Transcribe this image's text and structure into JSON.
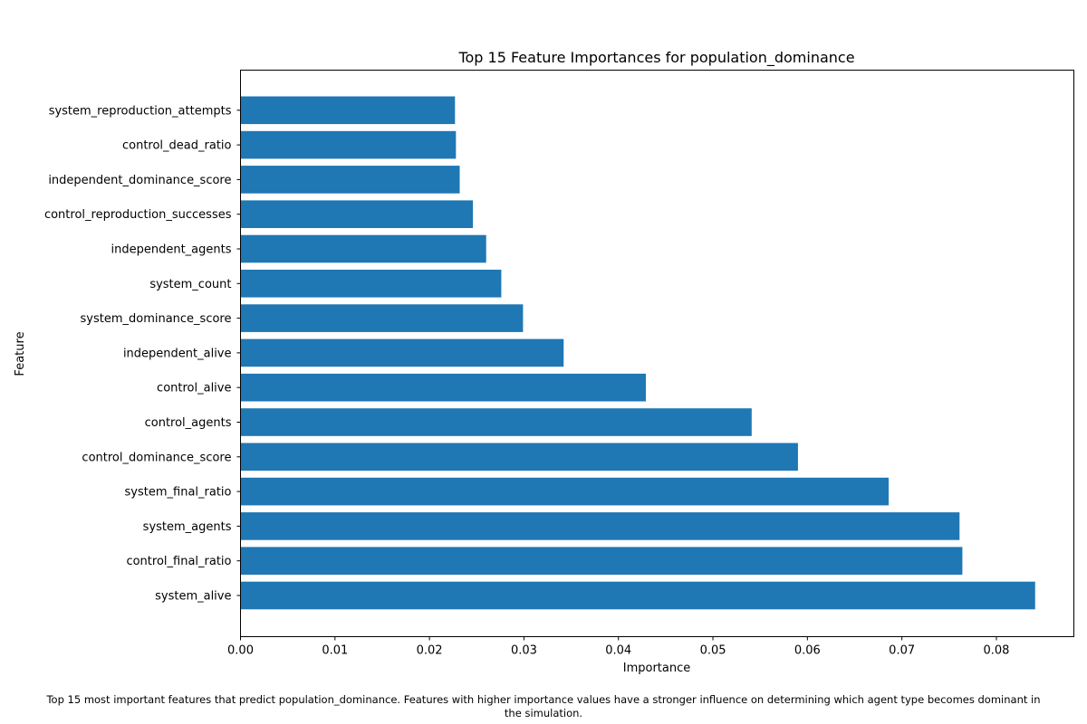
{
  "chart_data": {
    "type": "bar",
    "orientation": "horizontal",
    "title": "Top 15 Feature Importances for population_dominance",
    "xlabel": "Importance",
    "ylabel": "Feature",
    "xlim": [
      0,
      0.0882
    ],
    "xticks": [
      "0.00",
      "0.01",
      "0.02",
      "0.03",
      "0.04",
      "0.05",
      "0.06",
      "0.07",
      "0.08"
    ],
    "categories": [
      "system_alive",
      "control_final_ratio",
      "system_agents",
      "system_final_ratio",
      "control_dominance_score",
      "control_agents",
      "control_alive",
      "independent_alive",
      "system_dominance_score",
      "system_count",
      "independent_agents",
      "control_reproduction_successes",
      "independent_dominance_score",
      "control_dead_ratio",
      "system_reproduction_attempts"
    ],
    "values": [
      0.0841,
      0.0764,
      0.0761,
      0.0686,
      0.059,
      0.0541,
      0.0429,
      0.0342,
      0.0299,
      0.0276,
      0.026,
      0.0246,
      0.0232,
      0.0228,
      0.0227
    ],
    "bar_color": "#1f77b4",
    "grid": false,
    "legend": "none"
  },
  "caption": {
    "line1": "Top 15 most important features that predict population_dominance. Features with higher importance values have a stronger influence on determining which agent type becomes dominant in",
    "line2": "the simulation."
  }
}
